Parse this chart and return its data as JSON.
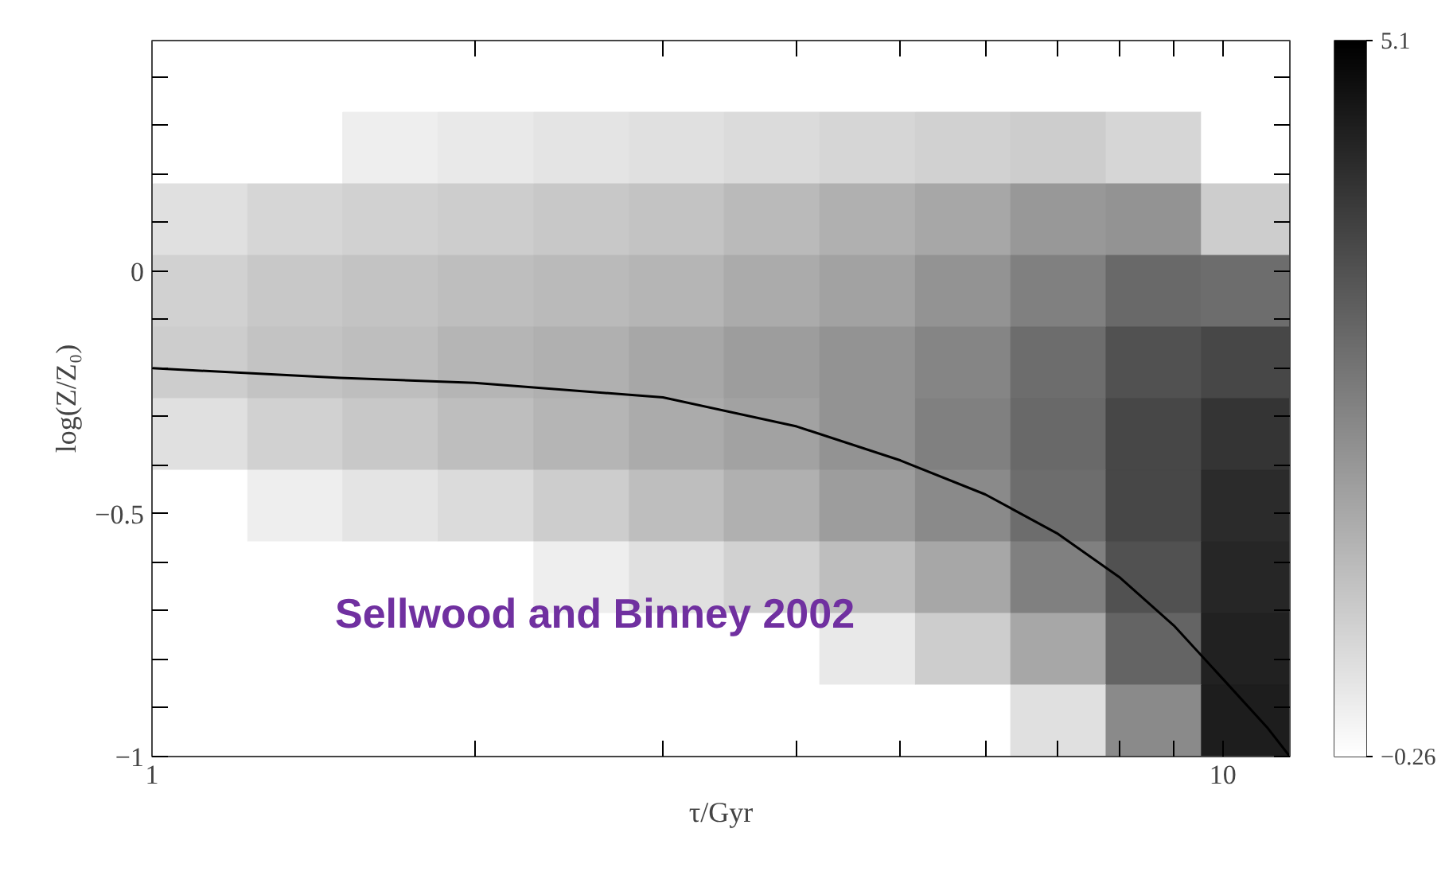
{
  "chart_data": {
    "type": "heatmap",
    "xlabel": "τ/Gyr",
    "ylabel": "log(Z/Z₀)",
    "log": "x",
    "x": [
      1.11,
      1.36,
      1.67,
      2.05,
      2.52,
      3.09,
      3.79,
      4.66,
      5.72,
      7.02,
      8.62,
      10.58
    ],
    "cells": [
      [
        -0.26,
        -0.26,
        -0.26,
        -0.26,
        -0.26,
        -0.26,
        -0.26,
        -0.26,
        -0.26,
        -0.26,
        -0.26,
        -0.26
      ],
      [
        -0.26,
        -0.26,
        0.1,
        0.2,
        0.3,
        0.4,
        0.5,
        0.6,
        0.7,
        0.8,
        0.6,
        -0.26
      ],
      [
        0.4,
        0.6,
        0.7,
        0.8,
        0.9,
        1.0,
        1.2,
        1.4,
        1.6,
        1.9,
        2.0,
        0.8
      ],
      [
        0.7,
        0.9,
        1.0,
        1.1,
        1.2,
        1.3,
        1.5,
        1.7,
        2.0,
        2.4,
        2.9,
        2.8
      ],
      [
        0.8,
        1.0,
        1.1,
        1.3,
        1.4,
        1.6,
        1.8,
        2.0,
        2.3,
        2.8,
        3.4,
        3.6
      ],
      [
        0.4,
        0.7,
        0.9,
        1.1,
        1.3,
        1.5,
        1.7,
        2.0,
        2.4,
        2.9,
        3.6,
        4.0
      ],
      [
        -0.26,
        0.1,
        0.3,
        0.5,
        0.8,
        1.1,
        1.4,
        1.8,
        2.2,
        2.8,
        3.6,
        4.2
      ],
      [
        -0.26,
        -0.26,
        -0.26,
        -0.26,
        0.1,
        0.4,
        0.7,
        1.1,
        1.6,
        2.4,
        3.4,
        4.3
      ],
      [
        -0.26,
        -0.26,
        -0.26,
        -0.26,
        -0.26,
        -0.26,
        -0.26,
        0.2,
        0.8,
        1.6,
        3.0,
        4.4
      ],
      [
        -0.26,
        -0.26,
        -0.26,
        -0.26,
        -0.26,
        -0.26,
        -0.26,
        -0.26,
        -0.26,
        0.4,
        2.2,
        4.5
      ]
    ],
    "clim": [
      -0.26,
      5.1
    ],
    "cticks": [
      {
        "value": 5.1,
        "label": "5.1"
      },
      {
        "value": -0.26,
        "label": "−0.26"
      }
    ],
    "series": [
      {
        "type": "line",
        "color": "#000000",
        "x": [
          1,
          1.5,
          2,
          3,
          4,
          5,
          6,
          7,
          8,
          9,
          10,
          11,
          11.55
        ],
        "values": [
          -0.2,
          -0.22,
          -0.23,
          -0.26,
          -0.32,
          -0.39,
          -0.46,
          -0.54,
          -0.63,
          -0.73,
          -0.84,
          -0.94,
          -1
        ]
      }
    ],
    "xlim": [
      1,
      11.55
    ],
    "xticks": [
      1,
      {
        "value": 2,
        "label": null
      },
      {
        "value": 3,
        "label": null
      },
      {
        "value": 4,
        "label": null
      },
      {
        "value": 5,
        "label": null
      },
      {
        "value": 6,
        "label": null
      },
      {
        "value": 7,
        "label": null
      },
      {
        "value": 8,
        "label": null
      },
      {
        "value": 9,
        "label": null
      },
      10
    ],
    "ylim": [
      -1,
      0.475
    ],
    "yticks": [
      {
        "value": -1,
        "label": "−1"
      },
      {
        "value": -0.9,
        "label": null
      },
      {
        "value": -0.8,
        "label": null
      },
      {
        "value": -0.7,
        "label": null
      },
      {
        "value": -0.6,
        "label": null
      },
      {
        "value": -0.5,
        "label": "−0.5"
      },
      {
        "value": -0.4,
        "label": null
      },
      {
        "value": -0.3,
        "label": null
      },
      {
        "value": -0.2,
        "label": null
      },
      {
        "value": -0.1,
        "label": null
      },
      0,
      {
        "value": 0.1,
        "label": null
      },
      {
        "value": 0.2,
        "label": null
      },
      {
        "value": 0.3,
        "label": null
      },
      {
        "value": 0.4,
        "label": null
      }
    ],
    "annotations": [
      "Sellwood and Binney 2002"
    ]
  }
}
